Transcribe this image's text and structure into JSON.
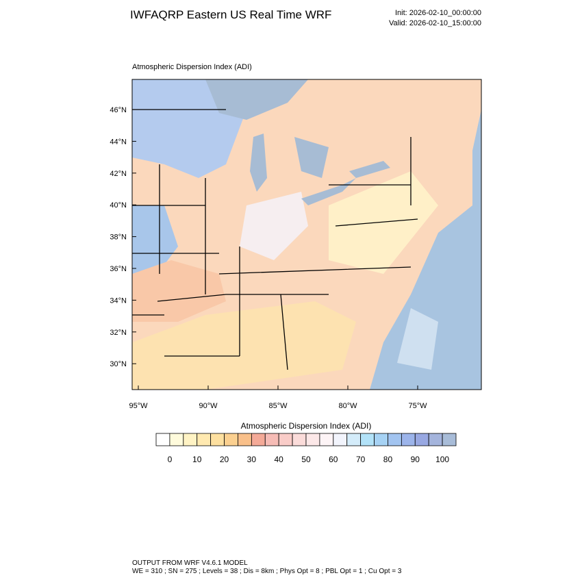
{
  "header": {
    "title": "IWFAQRP Eastern US Real Time WRF",
    "init": "Init: 2026-02-10_00:00:00",
    "valid": "Valid: 2026-02-10_15:00:00"
  },
  "map": {
    "label": "Atmospheric Dispersion Index   (ADI)",
    "lat_labels": [
      "46°N",
      "44°N",
      "42°N",
      "40°N",
      "38°N",
      "36°N",
      "34°N",
      "32°N",
      "30°N"
    ],
    "lon_labels": [
      "95°W",
      "90°W",
      "85°W",
      "80°W",
      "75°W"
    ]
  },
  "colorbar": {
    "title": "Atmospheric Dispersion Index (ADI)",
    "colors": [
      "#ffffff",
      "#fffbdc",
      "#fff3c4",
      "#ffe9b0",
      "#fde0a0",
      "#fbd090",
      "#f9c08a",
      "#f4aa98",
      "#f6bcb6",
      "#f9ccc8",
      "#fbdcda",
      "#fce8e8",
      "#fdf4f6",
      "#f2f4fc",
      "#d4ecfa",
      "#b2e2f8",
      "#a6d2f4",
      "#a2c4f0",
      "#9cb4ea",
      "#98a8e2",
      "#a4b4dc",
      "#a8bcd8"
    ],
    "tick_labels": [
      "0",
      "10",
      "20",
      "30",
      "40",
      "50",
      "60",
      "70",
      "80",
      "90",
      "100"
    ]
  },
  "footer": {
    "line1": "OUTPUT FROM WRF V4.6.1 MODEL",
    "line2": "WE = 310 ; SN = 275 ; Levels = 38 ; Dis = 8km ; Phys Opt = 8 ; PBL Opt = 1 ; Cu Opt = 3"
  }
}
